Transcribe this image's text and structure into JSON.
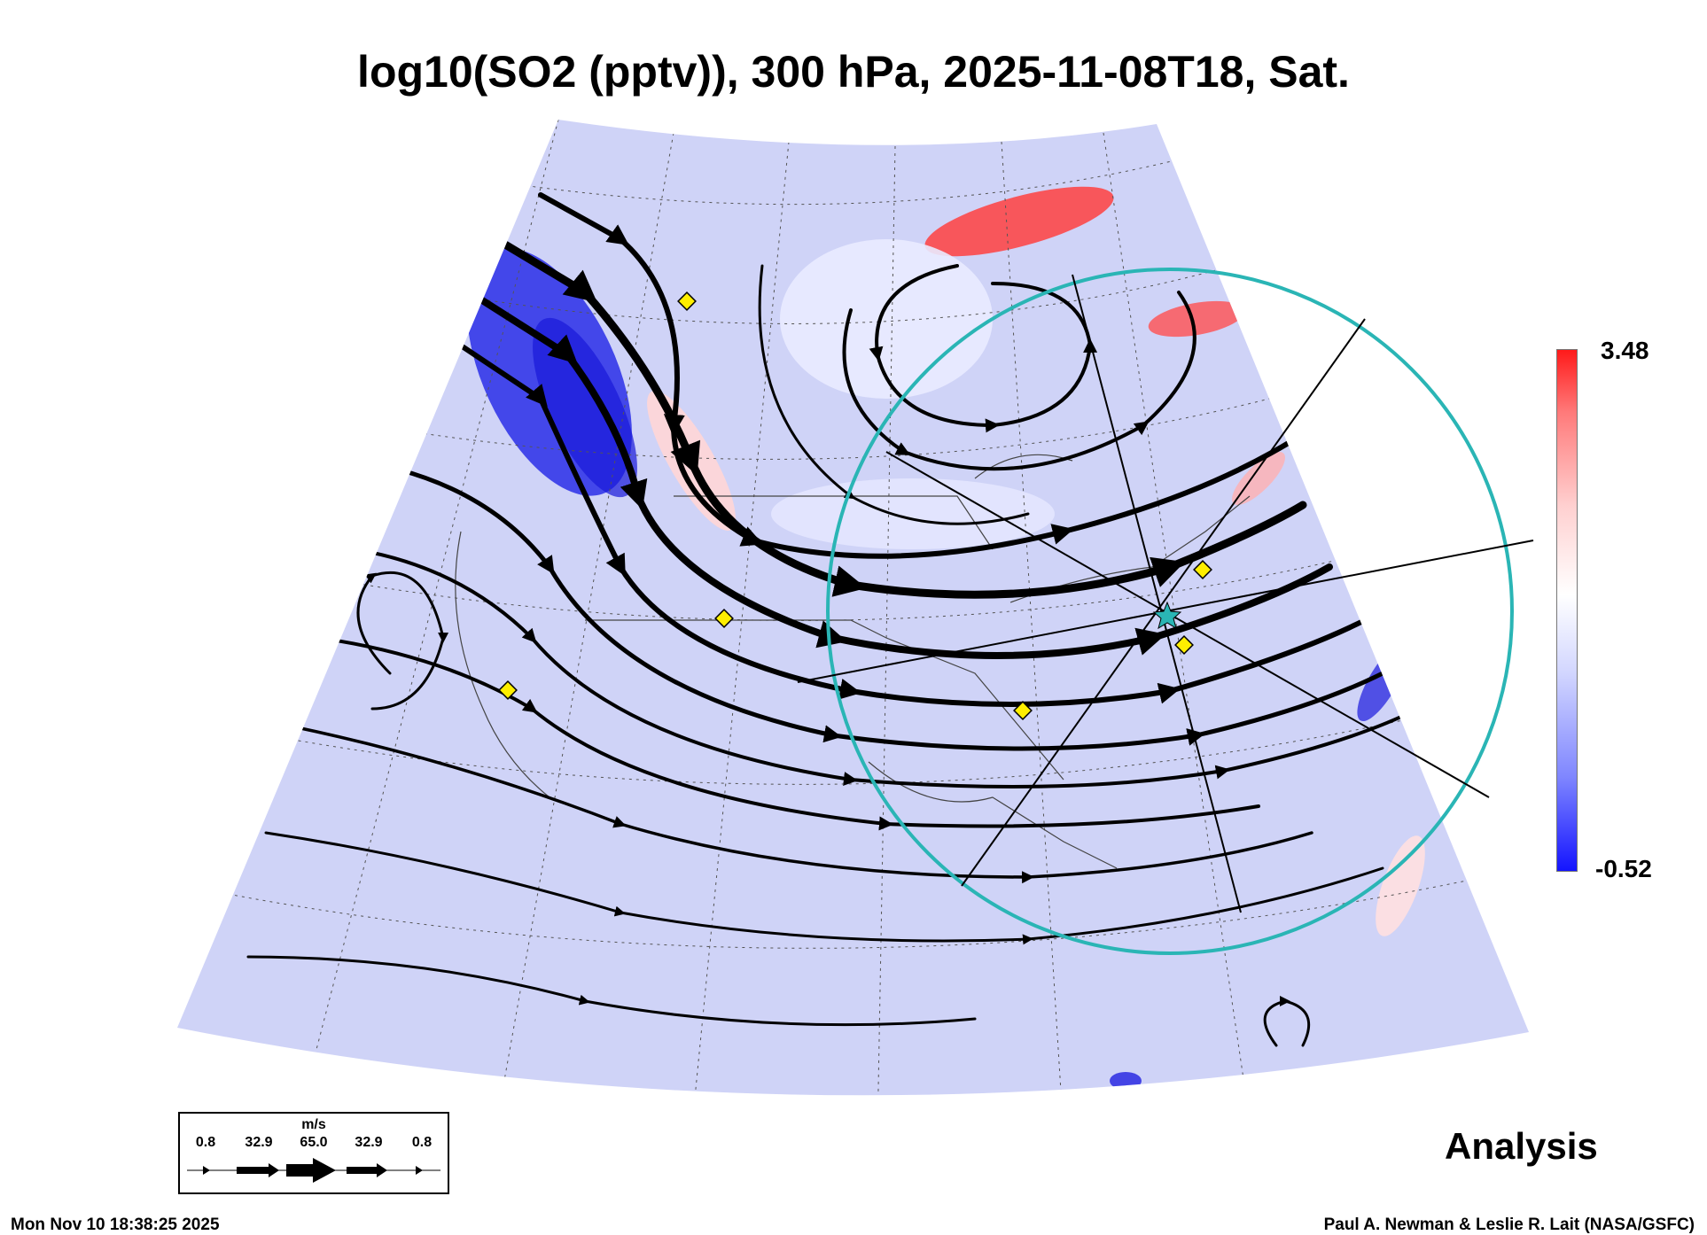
{
  "title": "log10(SO2 (pptv)), 300 hPa, 2025-11-08T18, Sat.",
  "colorbar": {
    "max_label": "3.48",
    "min_label": "-0.52",
    "colors": [
      "#ff1a1a",
      "#ffffff",
      "#1414ff"
    ]
  },
  "analysis_label": "Analysis",
  "timestamp": "Mon Nov 10 18:38:25 2025",
  "credit": "Paul A. Newman & Leslie R. Lait (NASA/GSFC)",
  "wind_legend": {
    "unit": "m/s",
    "values": [
      "0.8",
      "32.9",
      "65.0",
      "32.9",
      "0.8"
    ]
  },
  "colors": {
    "circle": "#2ab5b5",
    "marker": "#ffee00",
    "streamline": "#000000"
  }
}
